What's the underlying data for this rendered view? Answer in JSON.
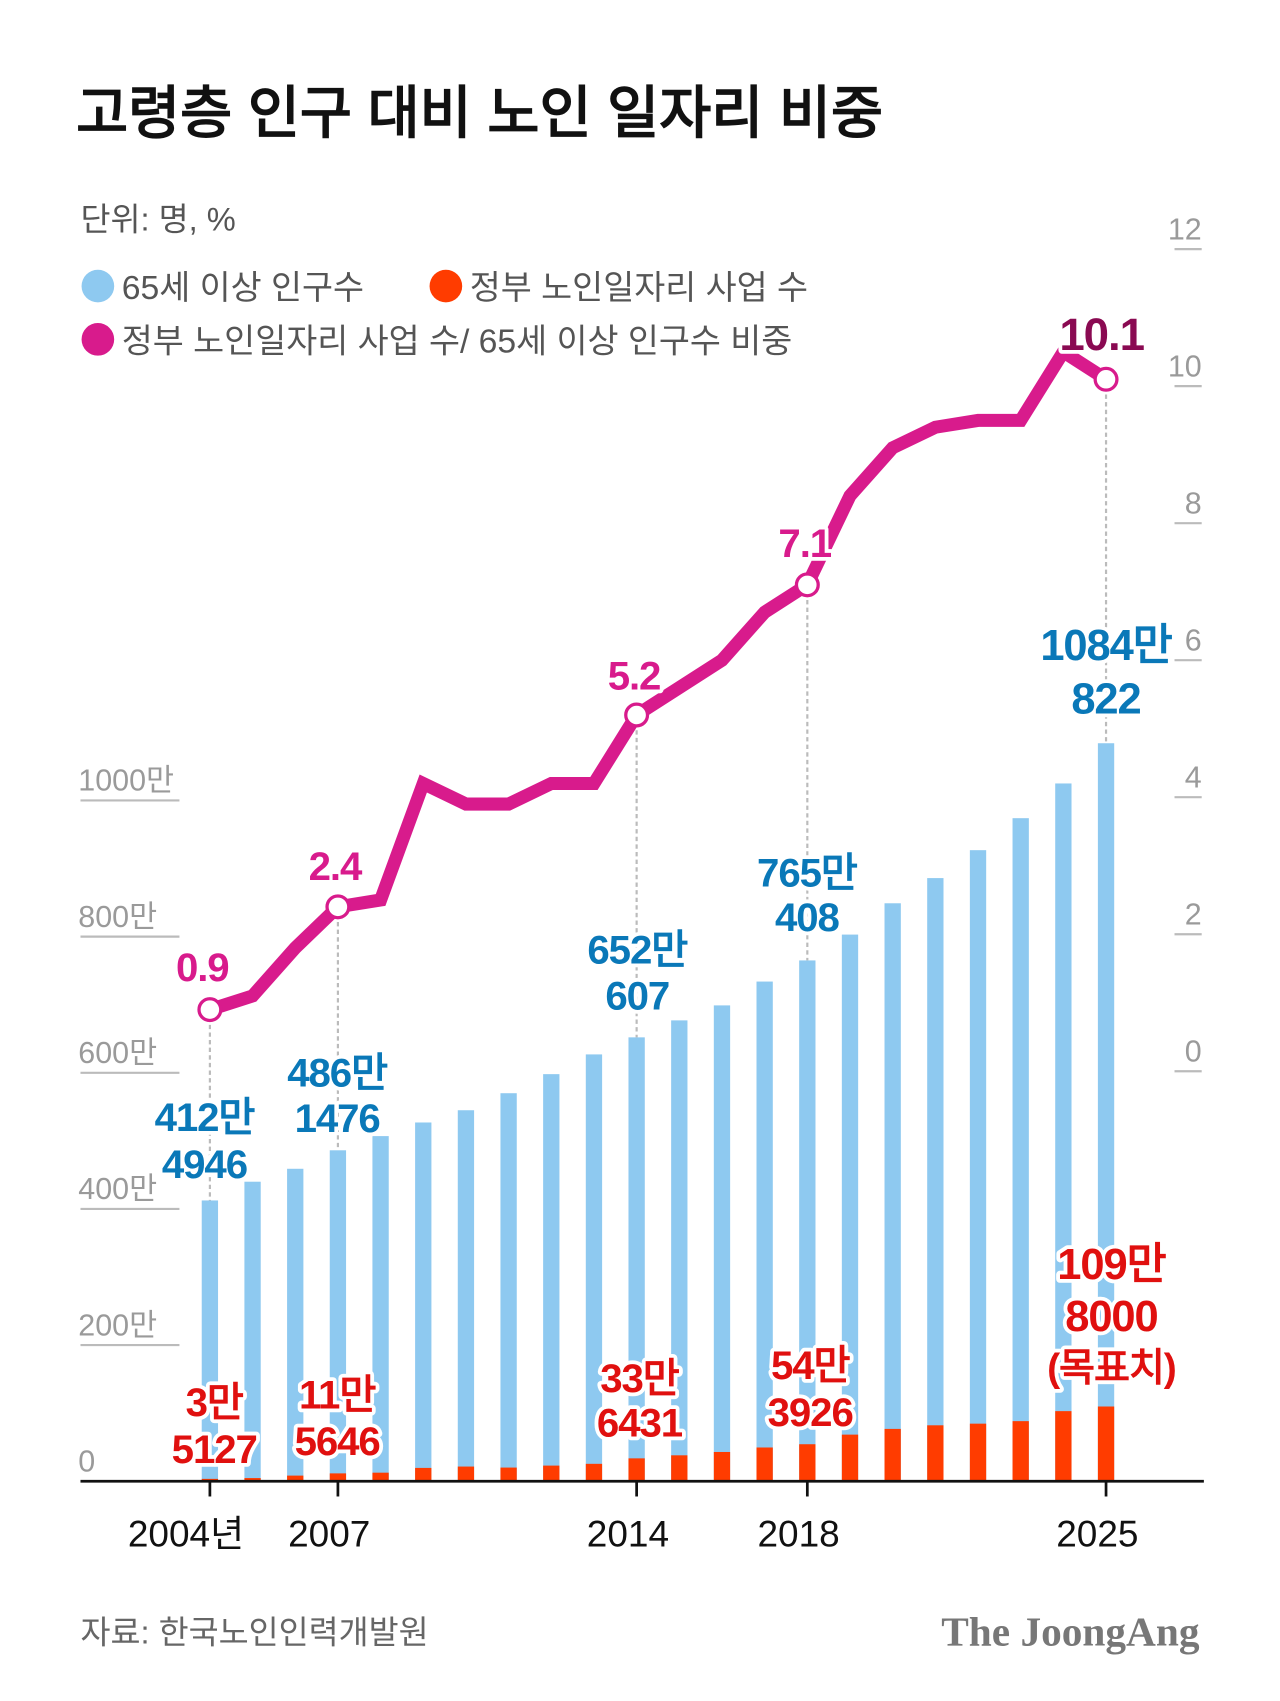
{
  "header": {
    "title": "고령층 인구 대비 노인 일자리 비중",
    "unit": "단위: 명, %"
  },
  "legend": [
    {
      "label": "65세 이상 인구수",
      "color": "#8ec9f0"
    },
    {
      "label": "정부 노인일자리 사업 수",
      "color": "#ff3c00"
    },
    {
      "label": "정부 노인일자리 사업 수/ 65세 이상 인구수 비중",
      "color": "#d81b8c"
    }
  ],
  "footer": {
    "source": "자료: 한국노인인력개발원",
    "brand": "The JoongAng"
  },
  "chart_data": {
    "type": "bar+line",
    "title": "고령층 인구 대비 노인 일자리 비중",
    "x": [
      2004,
      2005,
      2006,
      2007,
      2008,
      2009,
      2010,
      2011,
      2012,
      2013,
      2014,
      2015,
      2016,
      2017,
      2018,
      2019,
      2020,
      2021,
      2022,
      2023,
      2024,
      2025
    ],
    "x_tick_labels": [
      {
        "year": 2004,
        "label": "2004년"
      },
      {
        "year": 2007,
        "label": "2007"
      },
      {
        "year": 2014,
        "label": "2014"
      },
      {
        "year": 2018,
        "label": "2018"
      },
      {
        "year": 2025,
        "label": "2025"
      }
    ],
    "left_axis": {
      "unit": "만 명",
      "range": [
        0,
        1000
      ],
      "ticks": [
        "0",
        "200만",
        "400만",
        "600만",
        "800만",
        "1000만"
      ],
      "tick_values": [
        0,
        200,
        400,
        600,
        800,
        1000
      ]
    },
    "right_axis": {
      "unit": "%",
      "range": [
        0,
        12
      ],
      "ticks": [
        "0",
        "2",
        "4",
        "6",
        "8",
        "10",
        "12"
      ],
      "tick_values": [
        0,
        2,
        4,
        6,
        8,
        10,
        12
      ]
    },
    "grid": false,
    "legend_position": "top-left",
    "series": [
      {
        "name": "65세 이상 인구수",
        "type": "bar",
        "axis": "left",
        "color": "#8ec9f0",
        "values": [
          412.49,
          440,
          459,
          486.15,
          507,
          527,
          545,
          570,
          598,
          627,
          652.06,
          677,
          699,
          734,
          765.04,
          803,
          849,
          886,
          927,
          974,
          1025,
          1084.08
        ]
      },
      {
        "name": "정부 노인일자리 사업 수",
        "type": "bar",
        "axis": "left",
        "color": "#ff3c00",
        "values": [
          3.51,
          4.7,
          8.3,
          11.56,
          12.6,
          19.6,
          21.6,
          20.1,
          23.0,
          25.6,
          33.64,
          38.1,
          43.0,
          49.6,
          54.39,
          68.5,
          76.9,
          82.2,
          84.6,
          88.3,
          103,
          109.8
        ]
      },
      {
        "name": "정부 노인일자리 사업 수/ 65세 이상 인구수 비중",
        "type": "line",
        "axis": "right",
        "color": "#d81b8c",
        "values": [
          0.9,
          1.1,
          1.8,
          2.4,
          2.5,
          4.2,
          3.9,
          3.9,
          4.2,
          4.2,
          5.2,
          5.6,
          6.0,
          6.7,
          7.1,
          8.4,
          9.1,
          9.4,
          9.5,
          9.5,
          10.5,
          10.1
        ]
      }
    ],
    "annotations": {
      "y2004": {
        "ratio": "0.9",
        "pop1": "412만",
        "pop2": "4946",
        "jobs1": "3만",
        "jobs2": "5127"
      },
      "y2007": {
        "ratio": "2.4",
        "pop1": "486만",
        "pop2": "1476",
        "jobs1": "11만",
        "jobs2": "5646"
      },
      "y2014": {
        "ratio": "5.2",
        "pop1": "652만",
        "pop2": "607",
        "jobs1": "33만",
        "jobs2": "6431"
      },
      "y2018": {
        "ratio": "7.1",
        "pop1": "765만",
        "pop2": "408",
        "jobs1": "54만",
        "jobs2": "3926"
      },
      "y2025": {
        "ratio": "10.1",
        "pop1": "1084만",
        "pop2": "822",
        "jobs1": "109만",
        "jobs2": "8000",
        "jobs3": "(목표치)"
      }
    }
  }
}
